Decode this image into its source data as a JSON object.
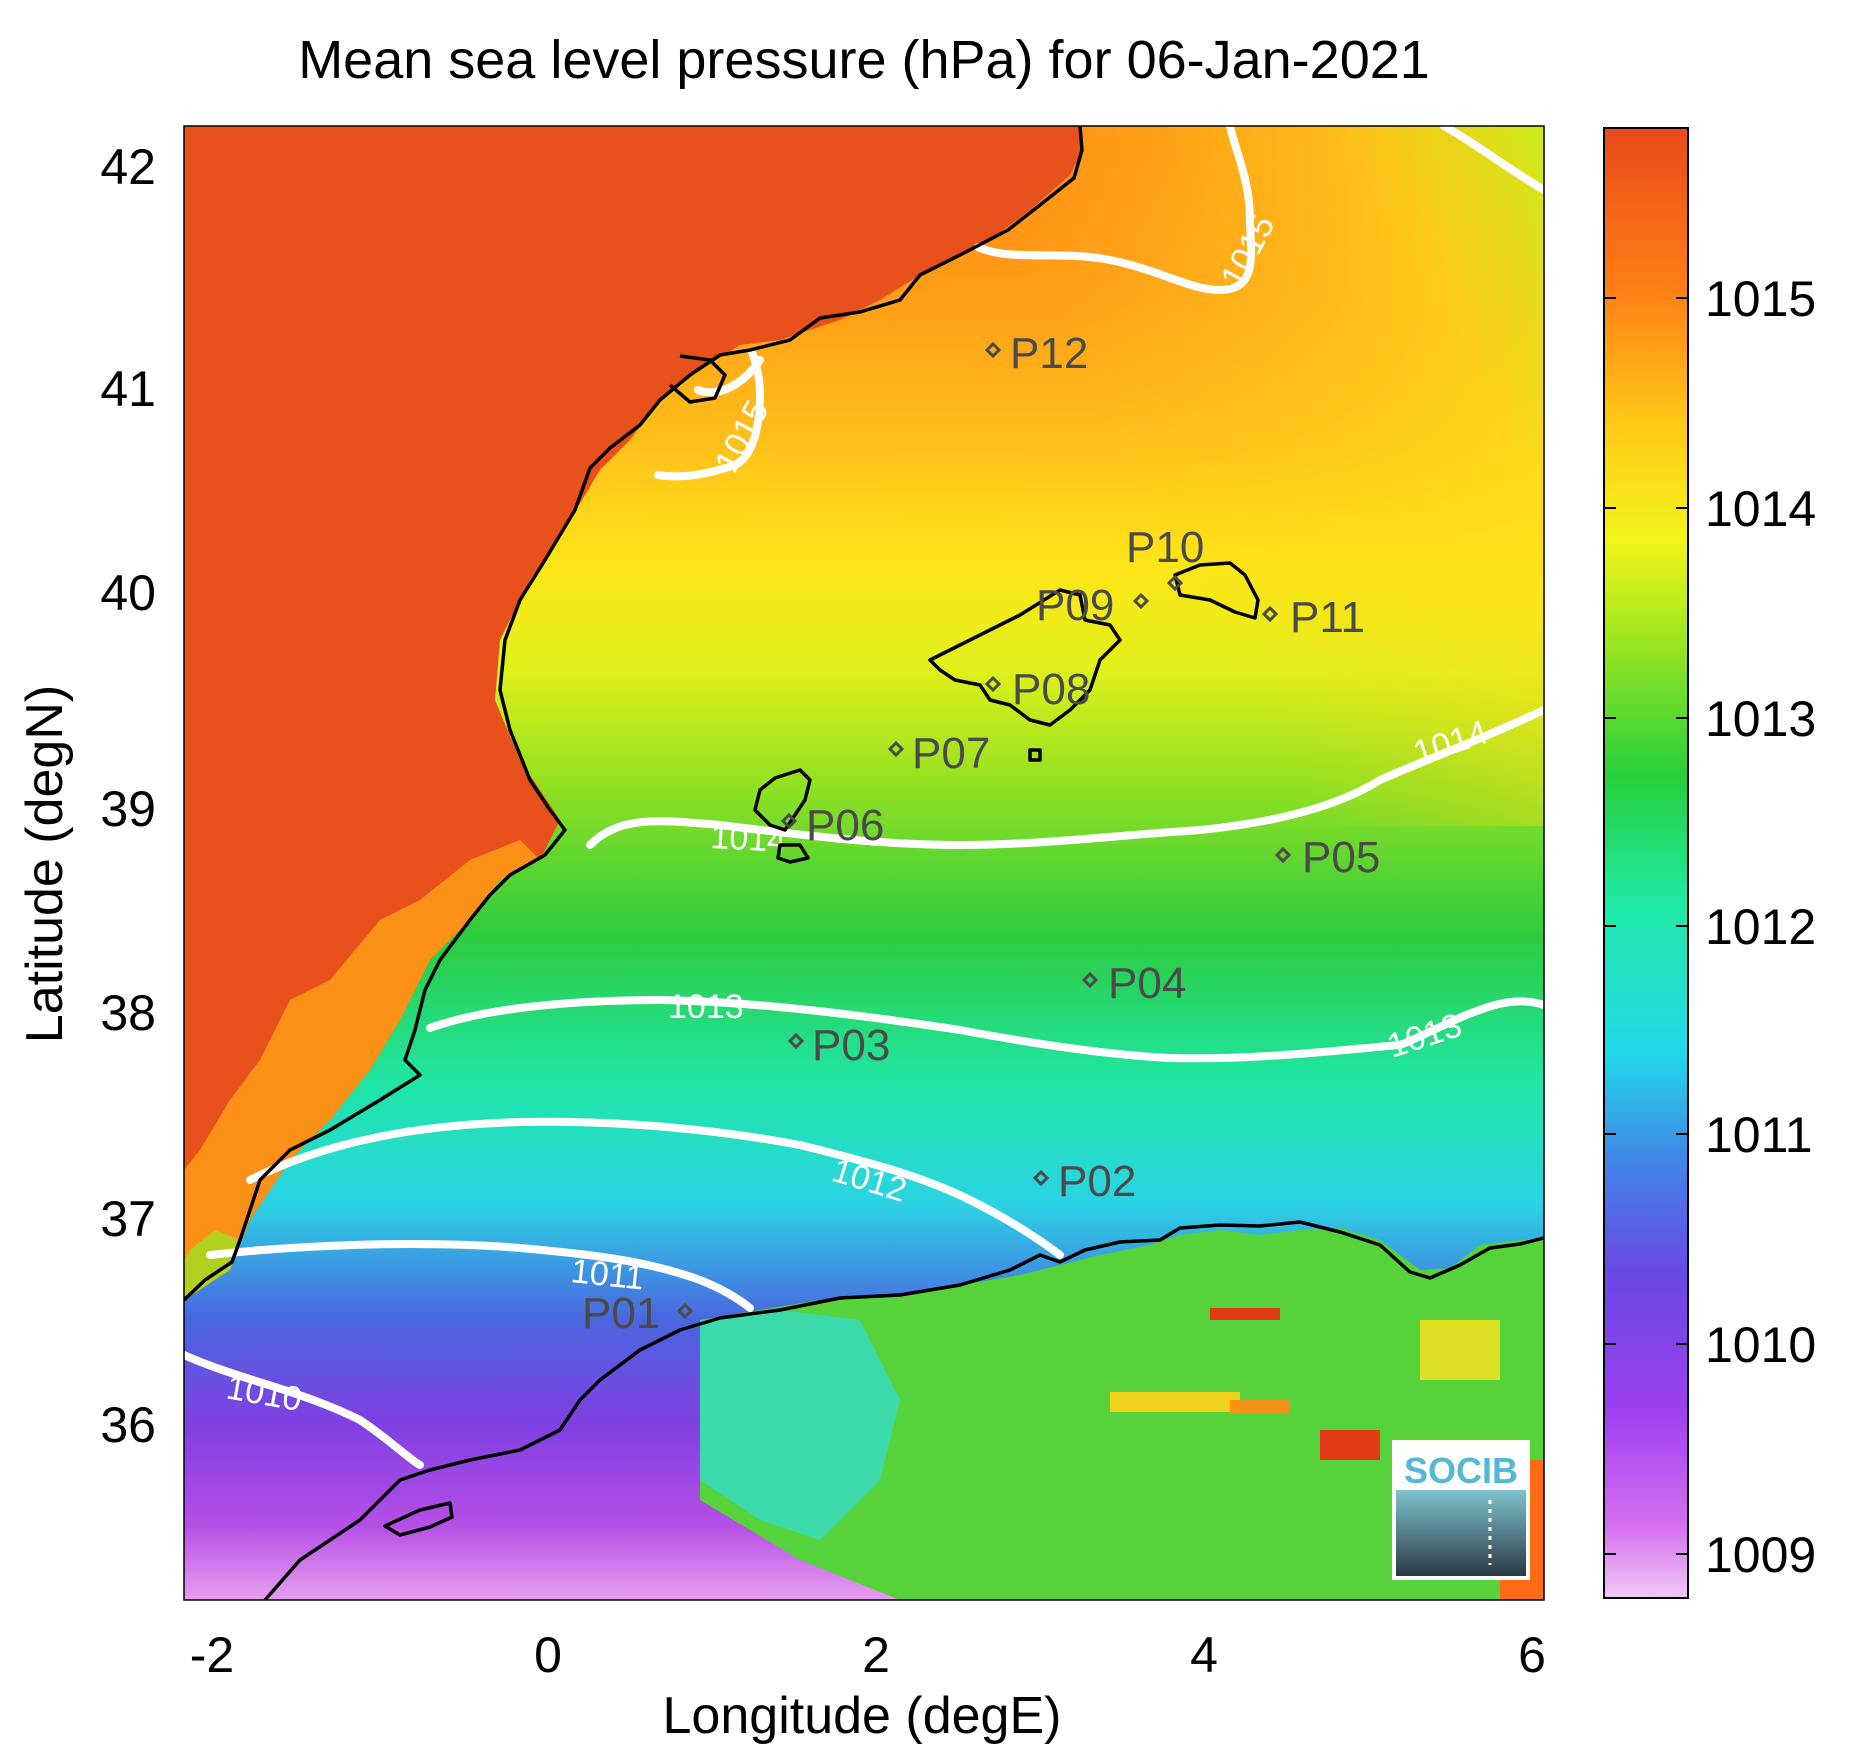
{
  "title": "Mean sea level pressure (hPa) for 06-Jan-2021",
  "map": {
    "type": "heatmap",
    "xlabel": "Longitude (degE)",
    "ylabel": "Latitude (degN)",
    "xlim": [
      -2.2,
      6.1
    ],
    "ylim": [
      35.15,
      42.2
    ],
    "x_ticks": [
      "-2",
      "0",
      "2",
      "4",
      "6"
    ],
    "y_ticks": [
      "36",
      "37",
      "38",
      "39",
      "40",
      "41",
      "42"
    ],
    "colorbar": {
      "range": [
        1008.75,
        1015.8
      ],
      "ticks": [
        "1009",
        "1010",
        "1011",
        "1012",
        "1013",
        "1014",
        "1015"
      ]
    },
    "contours": [
      {
        "level": "1010",
        "label": "1010"
      },
      {
        "level": "1011",
        "label": "1011"
      },
      {
        "level": "1012",
        "label": "1012"
      },
      {
        "level": "1013",
        "label": "1013"
      },
      {
        "level": "1013",
        "label": "1013"
      },
      {
        "level": "1014",
        "label": "1014"
      },
      {
        "level": "1014",
        "label": "1014"
      },
      {
        "level": "1015",
        "label": "1015"
      },
      {
        "level": "1015",
        "label": "1015"
      }
    ],
    "stations": [
      {
        "name": "P01",
        "lon": 0.85,
        "lat": 36.52
      },
      {
        "name": "P02",
        "lon": 3.0,
        "lat": 37.15
      },
      {
        "name": "P03",
        "lon": 1.5,
        "lat": 37.8
      },
      {
        "name": "P04",
        "lon": 3.3,
        "lat": 38.1
      },
      {
        "name": "P05",
        "lon": 4.45,
        "lat": 38.7
      },
      {
        "name": "P06",
        "lon": 1.45,
        "lat": 38.88
      },
      {
        "name": "P07",
        "lon": 2.1,
        "lat": 39.2
      },
      {
        "name": "P08",
        "lon": 2.7,
        "lat": 39.5
      },
      {
        "name": "P09",
        "lon": 3.6,
        "lat": 39.92
      },
      {
        "name": "P10",
        "lon": 3.8,
        "lat": 40.0
      },
      {
        "name": "P11",
        "lon": 4.4,
        "lat": 39.85
      },
      {
        "name": "P12",
        "lon": 2.7,
        "lat": 41.08
      }
    ],
    "logo": "SOCIB",
    "colors": {
      "coast": "#000000",
      "contour": "#ffffff",
      "station": "#4a4a4a",
      "logo_text": "#55b8d6"
    }
  }
}
